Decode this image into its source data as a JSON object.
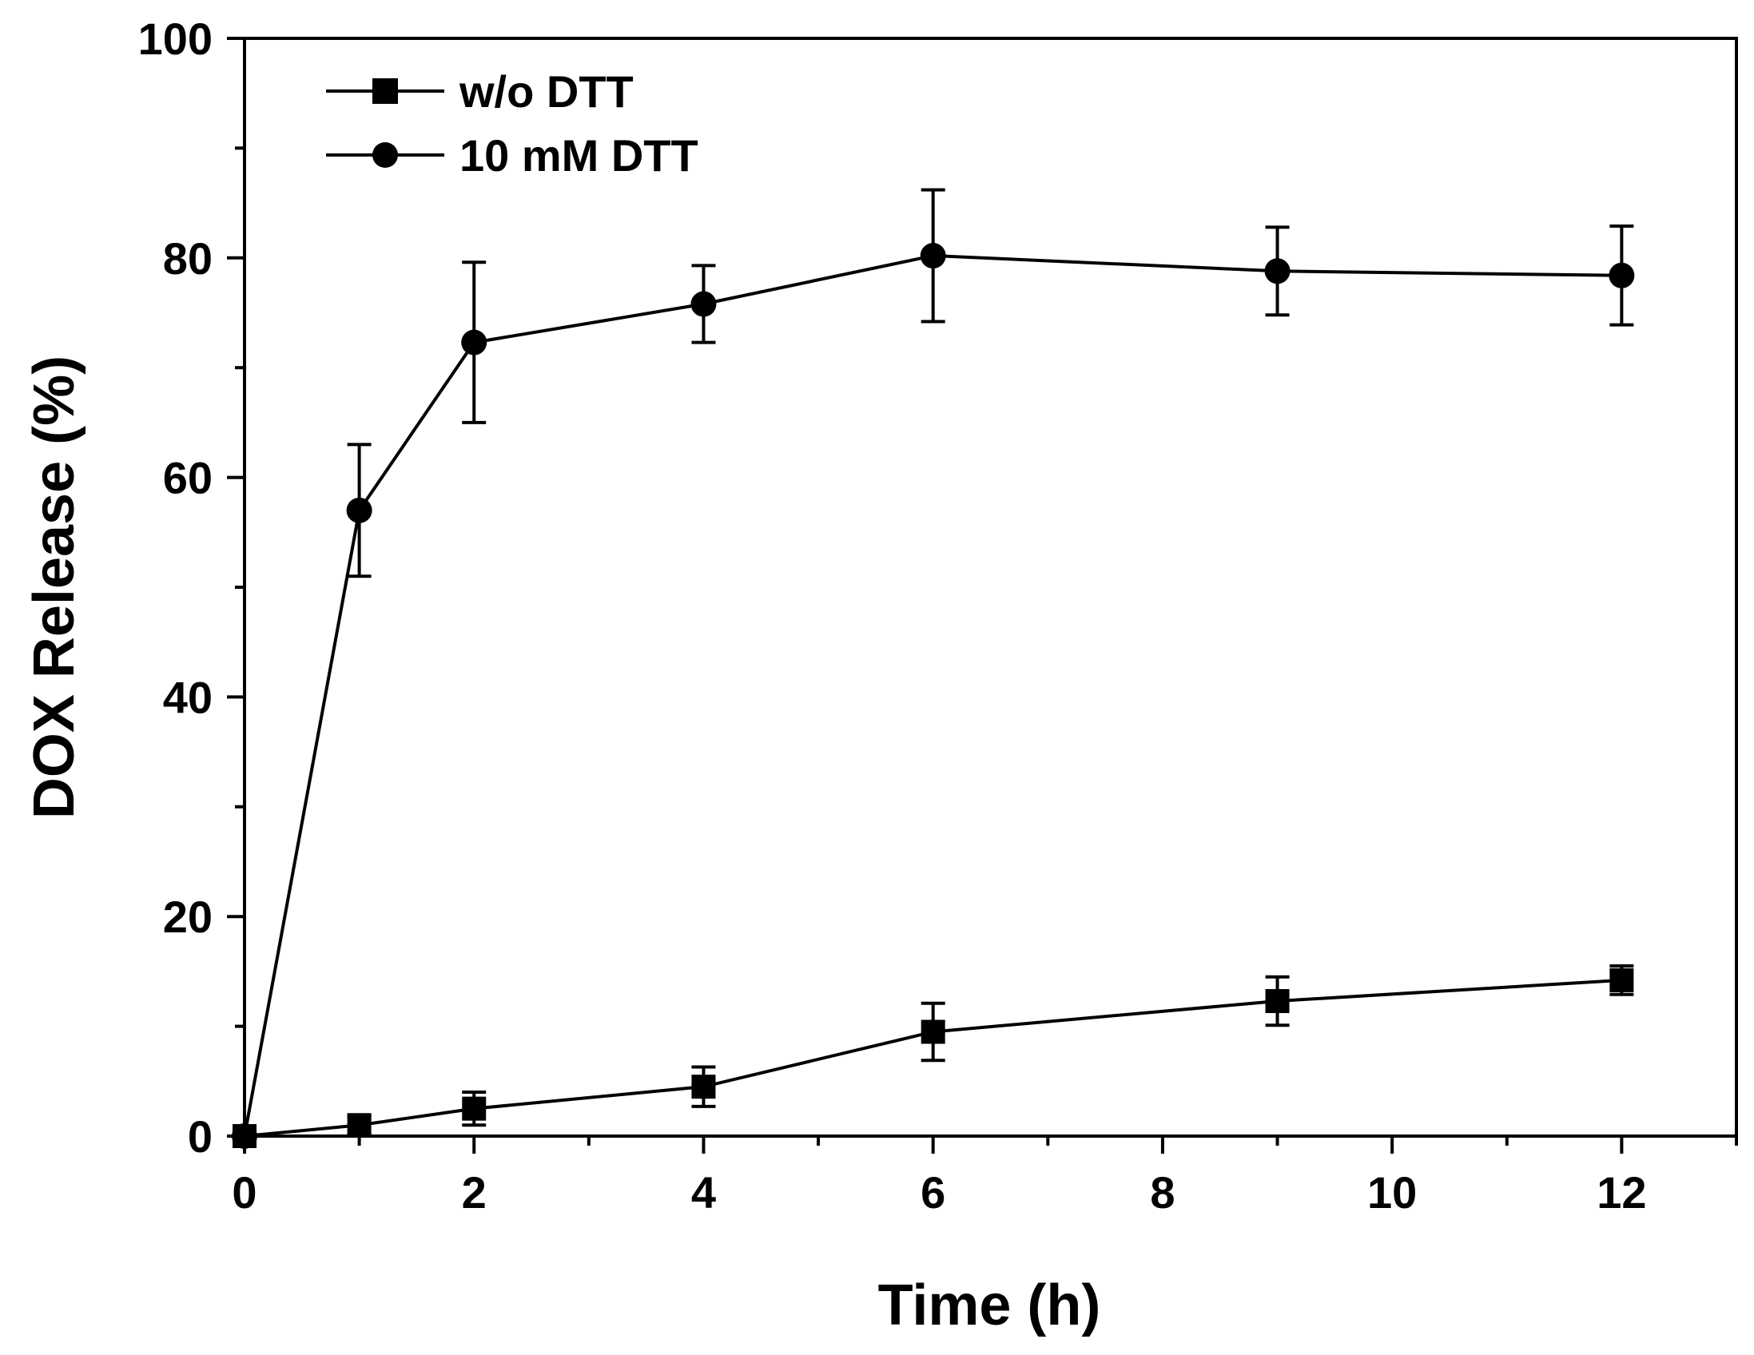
{
  "chart_data": {
    "type": "line",
    "title": "",
    "xlabel": "Time (h)",
    "ylabel": "DOX Release (%)",
    "xlim": [
      0,
      13
    ],
    "ylim": [
      0,
      100
    ],
    "xticks": [
      0,
      2,
      4,
      6,
      8,
      10,
      12
    ],
    "xminor": [
      1,
      3,
      5,
      7,
      9,
      11,
      13
    ],
    "yticks": [
      0,
      20,
      40,
      60,
      80,
      100
    ],
    "yminor": [
      10,
      30,
      50,
      70,
      90
    ],
    "grid": false,
    "legend_position": "top-left",
    "series": [
      {
        "name": "w/o DTT",
        "marker": "square",
        "x": [
          0,
          1,
          2,
          4,
          6,
          9,
          12
        ],
        "y": [
          0,
          1,
          2.5,
          4.5,
          9.5,
          12.3,
          14.2
        ],
        "err": [
          0,
          0.8,
          1.5,
          1.8,
          2.6,
          2.2,
          1.3
        ]
      },
      {
        "name": "10 mM DTT",
        "marker": "circle",
        "x": [
          0,
          1,
          2,
          4,
          6,
          9,
          12
        ],
        "y": [
          0,
          57,
          72.3,
          75.8,
          80.2,
          78.8,
          78.4
        ],
        "err": [
          0,
          6,
          7.3,
          3.5,
          6,
          4,
          4.5
        ]
      }
    ]
  }
}
